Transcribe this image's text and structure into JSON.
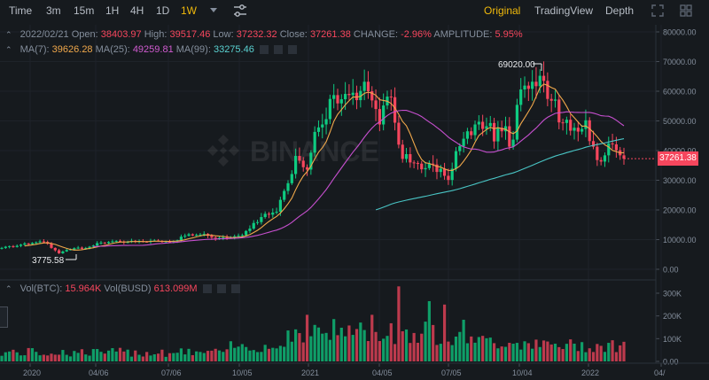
{
  "toolbar": {
    "timeframes": [
      "Time",
      "3m",
      "15m",
      "1H",
      "4H",
      "1D",
      "1W"
    ],
    "active": "1W",
    "views": [
      "Original",
      "TradingView",
      "Depth"
    ],
    "active_view": "Original"
  },
  "ohlc": {
    "date": "2022/02/21",
    "open_label": "Open:",
    "open": "38403.97",
    "high_label": "High:",
    "high": "39517.46",
    "low_label": "Low:",
    "low": "37232.32",
    "close_label": "Close:",
    "close": "37261.38",
    "change_label": "CHANGE:",
    "change": "-2.96%",
    "amplitude_label": "AMPLITUDE:",
    "amplitude": "5.95%"
  },
  "ma": {
    "ma7_label": "MA(7):",
    "ma7": "39626.28",
    "ma25_label": "MA(25):",
    "ma25": "49259.81",
    "ma99_label": "MA(99):",
    "ma99": "33275.46"
  },
  "volume": {
    "btc_label": "Vol(BTC):",
    "btc": "15.964K",
    "busd_label": "Vol(BUSD)",
    "busd": "613.099M"
  },
  "price_axis": [
    "80000.00",
    "70000.00",
    "60000.00",
    "50000.00",
    "40000.00",
    "30000.00",
    "20000.00",
    "10000.00",
    "0.00"
  ],
  "volume_axis": [
    "300K",
    "200K",
    "100K",
    "0.00"
  ],
  "time_axis": [
    "2020",
    "04/06",
    "07/06",
    "10/05",
    "2021",
    "04/05",
    "07/05",
    "10/04",
    "2022",
    "04/"
  ],
  "current_price": "37261.38",
  "high_annotation": "69020.00",
  "low_annotation": "3775.58",
  "watermark": "BINANCE",
  "colors": {
    "up": "#0ecb81",
    "down": "#f6465d",
    "ma7": "#f0a84b",
    "ma25": "#c64fce",
    "ma99": "#49c5c5",
    "accent": "#f0b90b"
  },
  "chart_data": {
    "type": "candlestick",
    "y_range": [
      0,
      80000
    ],
    "volume_range": [
      0,
      350000
    ],
    "closes": [
      7200,
      7600,
      7800,
      7500,
      7900,
      8300,
      8700,
      8500,
      8900,
      9100,
      9400,
      9200,
      8600,
      7200,
      6400,
      5400,
      6000,
      6500,
      6700,
      7100,
      7300,
      6900,
      7200,
      7600,
      8000,
      8800,
      9000,
      8800,
      9200,
      9400,
      9600,
      9300,
      9000,
      9200,
      9600,
      9400,
      9500,
      9300,
      9200,
      9600,
      9700,
      9500,
      9300,
      9400,
      9200,
      9500,
      9800,
      11000,
      11300,
      11800,
      11400,
      11600,
      11700,
      11900,
      11300,
      10700,
      10400,
      10600,
      10800,
      10500,
      10700,
      11100,
      11300,
      11500,
      12900,
      13700,
      15600,
      15900,
      17600,
      18700,
      18400,
      19100,
      19400,
      23400,
      26400,
      29000,
      32100,
      38200,
      36600,
      34400,
      33600,
      39300,
      46300,
      47800,
      48800,
      50600,
      57400,
      58700,
      55900,
      57300,
      59100,
      58700,
      59500,
      57000,
      60100,
      63200,
      60000,
      56900,
      54000,
      48800,
      55200,
      58200,
      58000,
      49400,
      42000,
      37200,
      38800,
      36000,
      35800,
      35600,
      33700,
      34100,
      35600,
      35300,
      32800,
      33900,
      31500,
      30100,
      33900,
      39800,
      41500,
      44000,
      46500,
      45200,
      48800,
      49700,
      47300,
      48200,
      49300,
      43100,
      47700,
      46500,
      48200,
      41300,
      43700,
      55400,
      60600,
      61900,
      60800,
      63200,
      61700,
      65200,
      63500,
      57400,
      56800,
      57200,
      49500,
      49300,
      50400,
      46700,
      47700,
      46400,
      47300,
      50200,
      43200,
      41300,
      36800,
      36300,
      38400,
      42400,
      42100,
      40100,
      38400,
      37261
    ],
    "extremes": {
      "high": 69020,
      "low": 3775.58
    }
  }
}
